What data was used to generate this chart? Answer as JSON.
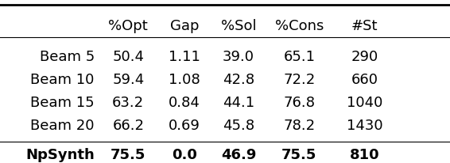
{
  "headers": [
    "",
    "%Opt",
    "Gap",
    "%Sol",
    "%Cons",
    "#St"
  ],
  "rows": [
    {
      "label": "Beam 5",
      "values": [
        "50.4",
        "1.11",
        "39.0",
        "65.1",
        "290"
      ],
      "bold": false
    },
    {
      "label": "Beam 10",
      "values": [
        "59.4",
        "1.08",
        "42.8",
        "72.2",
        "660"
      ],
      "bold": false
    },
    {
      "label": "Beam 15",
      "values": [
        "63.2",
        "0.84",
        "44.1",
        "76.8",
        "1040"
      ],
      "bold": false
    },
    {
      "label": "Beam 20",
      "values": [
        "66.2",
        "0.69",
        "45.8",
        "78.2",
        "1430"
      ],
      "bold": false
    },
    {
      "label": "NpSynth",
      "values": [
        "75.5",
        "0.0",
        "46.9",
        "75.5",
        "810"
      ],
      "bold": true
    }
  ],
  "fontsize": 13,
  "bg_color": "#ffffff",
  "line_color": "#000000",
  "text_color": "#000000",
  "fig_width": 5.66,
  "fig_height": 2.06,
  "dpi": 100
}
